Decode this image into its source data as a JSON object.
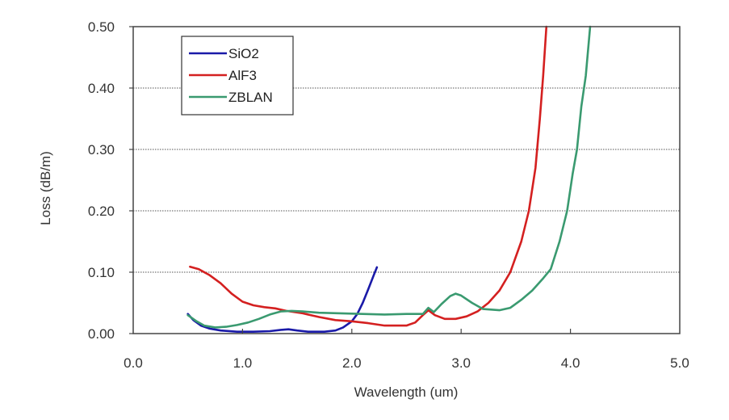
{
  "chart_data": {
    "type": "line",
    "title": "",
    "xlabel": "Wavelength (um)",
    "ylabel": "Loss (dB/m)",
    "xlim": [
      0.0,
      5.0
    ],
    "ylim": [
      0.0,
      0.5
    ],
    "x_ticks": [
      "0.0",
      "1.0",
      "2.0",
      "3.0",
      "4.0",
      "5.0"
    ],
    "x_tick_values": [
      0,
      1,
      2,
      3,
      4,
      5
    ],
    "y_ticks": [
      "0.00",
      "0.10",
      "0.20",
      "0.30",
      "0.40",
      "0.50"
    ],
    "y_tick_values": [
      0,
      0.1,
      0.2,
      0.3,
      0.4,
      0.5
    ],
    "grid": "horizontal-dotted",
    "legend_position": "top-left",
    "series": [
      {
        "name": "SiO2",
        "color": "#1a1aa8",
        "points": [
          [
            0.5,
            0.032
          ],
          [
            0.55,
            0.022
          ],
          [
            0.62,
            0.013
          ],
          [
            0.7,
            0.008
          ],
          [
            0.8,
            0.005
          ],
          [
            0.95,
            0.003
          ],
          [
            1.1,
            0.003
          ],
          [
            1.25,
            0.004
          ],
          [
            1.35,
            0.006
          ],
          [
            1.42,
            0.007
          ],
          [
            1.5,
            0.005
          ],
          [
            1.6,
            0.003
          ],
          [
            1.75,
            0.003
          ],
          [
            1.85,
            0.005
          ],
          [
            1.92,
            0.01
          ],
          [
            2.0,
            0.02
          ],
          [
            2.05,
            0.032
          ],
          [
            2.1,
            0.05
          ],
          [
            2.15,
            0.072
          ],
          [
            2.2,
            0.095
          ],
          [
            2.23,
            0.108
          ]
        ]
      },
      {
        "name": "AlF3",
        "color": "#d42020",
        "points": [
          [
            0.52,
            0.109
          ],
          [
            0.6,
            0.105
          ],
          [
            0.7,
            0.095
          ],
          [
            0.8,
            0.082
          ],
          [
            0.9,
            0.065
          ],
          [
            1.0,
            0.052
          ],
          [
            1.1,
            0.046
          ],
          [
            1.2,
            0.043
          ],
          [
            1.3,
            0.041
          ],
          [
            1.4,
            0.037
          ],
          [
            1.55,
            0.033
          ],
          [
            1.7,
            0.027
          ],
          [
            1.85,
            0.022
          ],
          [
            2.0,
            0.02
          ],
          [
            2.15,
            0.017
          ],
          [
            2.3,
            0.013
          ],
          [
            2.5,
            0.013
          ],
          [
            2.58,
            0.018
          ],
          [
            2.65,
            0.03
          ],
          [
            2.7,
            0.038
          ],
          [
            2.76,
            0.03
          ],
          [
            2.85,
            0.024
          ],
          [
            2.95,
            0.024
          ],
          [
            3.05,
            0.028
          ],
          [
            3.15,
            0.036
          ],
          [
            3.25,
            0.05
          ],
          [
            3.35,
            0.07
          ],
          [
            3.45,
            0.1
          ],
          [
            3.55,
            0.15
          ],
          [
            3.62,
            0.2
          ],
          [
            3.68,
            0.27
          ],
          [
            3.72,
            0.35
          ],
          [
            3.75,
            0.42
          ],
          [
            3.78,
            0.5
          ]
        ]
      },
      {
        "name": "ZBLAN",
        "color": "#3a9a70",
        "points": [
          [
            0.5,
            0.03
          ],
          [
            0.58,
            0.02
          ],
          [
            0.65,
            0.013
          ],
          [
            0.75,
            0.01
          ],
          [
            0.85,
            0.011
          ],
          [
            0.95,
            0.014
          ],
          [
            1.05,
            0.018
          ],
          [
            1.15,
            0.024
          ],
          [
            1.25,
            0.031
          ],
          [
            1.35,
            0.036
          ],
          [
            1.45,
            0.037
          ],
          [
            1.55,
            0.036
          ],
          [
            1.7,
            0.034
          ],
          [
            1.9,
            0.033
          ],
          [
            2.1,
            0.032
          ],
          [
            2.3,
            0.031
          ],
          [
            2.5,
            0.032
          ],
          [
            2.65,
            0.032
          ],
          [
            2.7,
            0.042
          ],
          [
            2.75,
            0.035
          ],
          [
            2.82,
            0.048
          ],
          [
            2.9,
            0.061
          ],
          [
            2.95,
            0.065
          ],
          [
            3.0,
            0.062
          ],
          [
            3.1,
            0.05
          ],
          [
            3.2,
            0.04
          ],
          [
            3.35,
            0.038
          ],
          [
            3.45,
            0.042
          ],
          [
            3.55,
            0.055
          ],
          [
            3.65,
            0.07
          ],
          [
            3.75,
            0.09
          ],
          [
            3.82,
            0.105
          ],
          [
            3.9,
            0.15
          ],
          [
            3.97,
            0.2
          ],
          [
            4.02,
            0.26
          ],
          [
            4.06,
            0.3
          ],
          [
            4.1,
            0.37
          ],
          [
            4.14,
            0.42
          ],
          [
            4.18,
            0.5
          ]
        ]
      }
    ]
  }
}
